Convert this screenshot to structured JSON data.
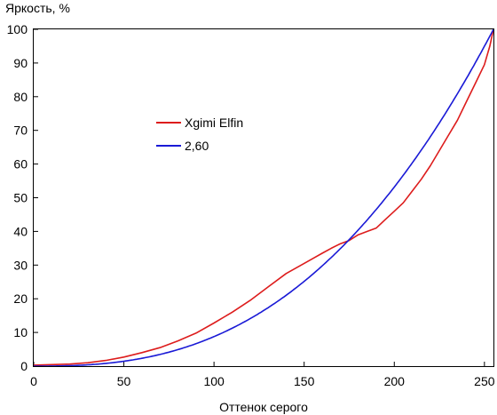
{
  "chart_data": {
    "type": "line",
    "title": "",
    "xlabel": "Оттенок серого",
    "ylabel": "Яркость, %",
    "xlim": [
      0,
      255
    ],
    "ylim": [
      0,
      100
    ],
    "xticks": [
      "0",
      "50",
      "100",
      "150",
      "200",
      "250"
    ],
    "yticks": [
      "0",
      "10",
      "20",
      "30",
      "40",
      "50",
      "60",
      "70",
      "80",
      "90",
      "100"
    ],
    "grid": false,
    "legend_position": "upper-left-center",
    "series": [
      {
        "name": "Xgimi Elfin",
        "color": "#dd1c1c",
        "x": [
          0,
          20,
          30,
          40,
          50,
          60,
          70,
          80,
          90,
          100,
          110,
          120,
          130,
          140,
          150,
          155,
          160,
          165,
          170,
          175,
          180,
          185,
          190,
          195,
          200,
          205,
          210,
          215,
          220,
          225,
          230,
          235,
          240,
          245,
          250,
          253,
          255
        ],
        "y": [
          0.3,
          0.6,
          1.0,
          1.7,
          2.7,
          4.0,
          5.5,
          7.5,
          9.8,
          12.8,
          16.0,
          19.5,
          23.5,
          27.5,
          30.5,
          32.0,
          33.5,
          35.0,
          36.3,
          37.3,
          39.0,
          40.0,
          41.0,
          43.5,
          46.0,
          48.5,
          52.0,
          55.5,
          59.5,
          64.0,
          68.5,
          73.0,
          78.5,
          84.0,
          89.5,
          95.0,
          100
        ]
      },
      {
        "name": "2,60",
        "color": "#1a1ad6",
        "gamma": 2.6,
        "x": [
          0,
          20,
          40,
          60,
          80,
          100,
          120,
          140,
          160,
          180,
          200,
          220,
          240,
          255
        ],
        "y": [
          0.1,
          0.2,
          0.8,
          2.3,
          4.9,
          8.8,
          14.2,
          21.0,
          29.7,
          40.3,
          53.2,
          68.1,
          85.4,
          100
        ]
      }
    ]
  }
}
